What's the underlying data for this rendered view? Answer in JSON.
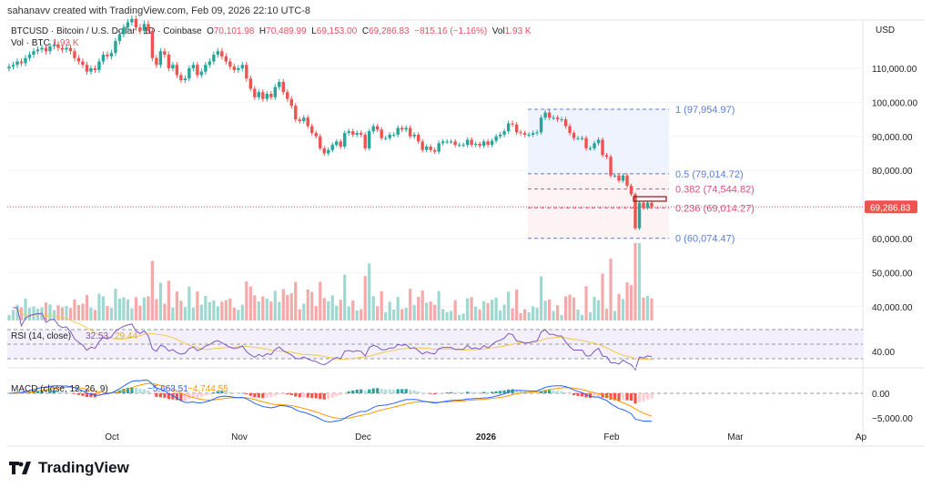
{
  "credit": "sahanavv created with TradingView.com, Feb 09, 2026 22:10 UTC-8",
  "legend": {
    "symbol": "BTCUSD · Bitcoin / U.S. Dollar · 1D · Coinbase",
    "open_label": "O",
    "open": "70,101.98",
    "high_label": "H",
    "high": "70,489.99",
    "low_label": "L",
    "low": "69,153.00",
    "close_label": "C",
    "close": "69,286.83",
    "change": "−815.16 (−1.16%)",
    "vol_label": "Vol",
    "vol": "1.93 K"
  },
  "volume_legend": {
    "label": "Vol · BTC",
    "value": "1.93 K"
  },
  "currency": "USD",
  "last_price": "69,286.83",
  "rsi": {
    "label": "RSI (14, close)",
    "value": "32.53",
    "ma": "29.44",
    "axis": "40.00"
  },
  "macd": {
    "label": "MACD (close, 12, 26, 9)",
    "macd": "−5,663.51",
    "signal": "−4,744.55",
    "axis": [
      "0.00",
      "−5,000.00"
    ]
  },
  "fib": [
    {
      "label": "1 (97,954.97)",
      "level": 97954.97,
      "color": "#5b7fd6"
    },
    {
      "label": "0.5 (79,014.72)",
      "level": 79014.72,
      "color": "#5b7fd6"
    },
    {
      "label": "0.382 (74,544.82)",
      "level": 74544.82,
      "color": "#d9507a"
    },
    {
      "label": "0.236 (69,014.27)",
      "level": 69014.27,
      "color": "#d9507a"
    },
    {
      "label": "0 (60,074.47)",
      "level": 60074.47,
      "color": "#5b7fd6"
    }
  ],
  "brand": "TradingView",
  "colors": {
    "up": "#26a69a",
    "down": "#ef5350",
    "rsi": "#7e57c2",
    "rsi_ma": "#f2c94c",
    "macd": "#2962ff",
    "signal": "#ff9800"
  },
  "chart_data": {
    "type": "candlestick",
    "start_date": "2025-09-05",
    "end_date": "2026-02-09",
    "closes_thousands": [
      110.5,
      111,
      112,
      111.5,
      113,
      114,
      115,
      115.5,
      116,
      115,
      116.5,
      117,
      116,
      115.5,
      116,
      115,
      113,
      112,
      111,
      109,
      110,
      109.5,
      112,
      114,
      113.5,
      114.5,
      118,
      120,
      122,
      123.5,
      124.5,
      122,
      121,
      123,
      121,
      113,
      111,
      115,
      114,
      110,
      111,
      108,
      106.5,
      107,
      110,
      111,
      108,
      109,
      111,
      112,
      114,
      115,
      113.5,
      112,
      110.5,
      109.5,
      110,
      111,
      107,
      104,
      101.5,
      103,
      101,
      102.5,
      101.5,
      104.5,
      106,
      103,
      101,
      99,
      95,
      94.5,
      95.5,
      93,
      91,
      90,
      86.5,
      85,
      86,
      87.5,
      88.5,
      87,
      91,
      91.5,
      90.5,
      91,
      90.5,
      86.5,
      91.5,
      93,
      92,
      89.5,
      89.5,
      90.5,
      90.5,
      92.5,
      92,
      92.5,
      90,
      90.5,
      88.5,
      86,
      87,
      86,
      85.5,
      88,
      88.5,
      88.5,
      88.5,
      87.5,
      87.5,
      87.5,
      89,
      87.5,
      87.8,
      87.2,
      88.5,
      87.5,
      88.7,
      90,
      90.5,
      91.5,
      93.8,
      93.5,
      91.2,
      91,
      90.5,
      90.5,
      91,
      91.2,
      95.5,
      97,
      95.5,
      95.5,
      95,
      95,
      93,
      91,
      89.5,
      89.5,
      89.5,
      86.5,
      86.5,
      88,
      89,
      84.5,
      84,
      78.5,
      78.5,
      77,
      78.5,
      75.5,
      73,
      63,
      70.5,
      69,
      70.5,
      69.3
    ],
    "y_ticks": [
      "110,000.00",
      "100,000.00",
      "90,000.00",
      "80,000.00",
      "60,000.00",
      "50,000.00",
      "40,000.00"
    ],
    "y_tick_values": [
      110000,
      100000,
      90000,
      80000,
      60000,
      50000,
      40000
    ],
    "x_ticks": [
      "Oct",
      "Nov",
      "Dec",
      "2026",
      "Feb",
      "Mar",
      "Ap"
    ]
  }
}
